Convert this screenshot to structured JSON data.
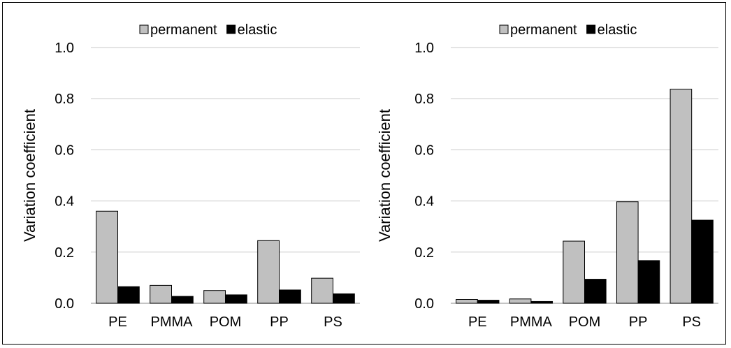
{
  "chart_data": [
    {
      "type": "bar",
      "title": "",
      "xlabel": "",
      "ylabel": "Variation coefficient",
      "ylim": [
        0,
        1.0
      ],
      "yticks": [
        "0.0",
        "0.2",
        "0.4",
        "0.6",
        "0.8",
        "1.0"
      ],
      "grid": true,
      "legend_position": "top",
      "categories": [
        "PE",
        "PMMA",
        "POM",
        "PP",
        "PS"
      ],
      "series": [
        {
          "name": "permanent",
          "color": "#c0c0c0",
          "values": [
            0.36,
            0.07,
            0.05,
            0.245,
            0.098
          ]
        },
        {
          "name": "elastic",
          "color": "#000000",
          "values": [
            0.065,
            0.027,
            0.033,
            0.052,
            0.037
          ]
        }
      ]
    },
    {
      "type": "bar",
      "title": "",
      "xlabel": "",
      "ylabel": "Variation coefficient",
      "ylim": [
        0,
        1.0
      ],
      "yticks": [
        "0.0",
        "0.2",
        "0.4",
        "0.6",
        "0.8",
        "1.0"
      ],
      "grid": true,
      "legend_position": "top",
      "categories": [
        "PE",
        "PMMA",
        "POM",
        "PP",
        "PS"
      ],
      "series": [
        {
          "name": "permanent",
          "color": "#c0c0c0",
          "values": [
            0.015,
            0.017,
            0.243,
            0.397,
            0.837
          ]
        },
        {
          "name": "elastic",
          "color": "#000000",
          "values": [
            0.012,
            0.007,
            0.094,
            0.167,
            0.325
          ]
        }
      ]
    }
  ]
}
